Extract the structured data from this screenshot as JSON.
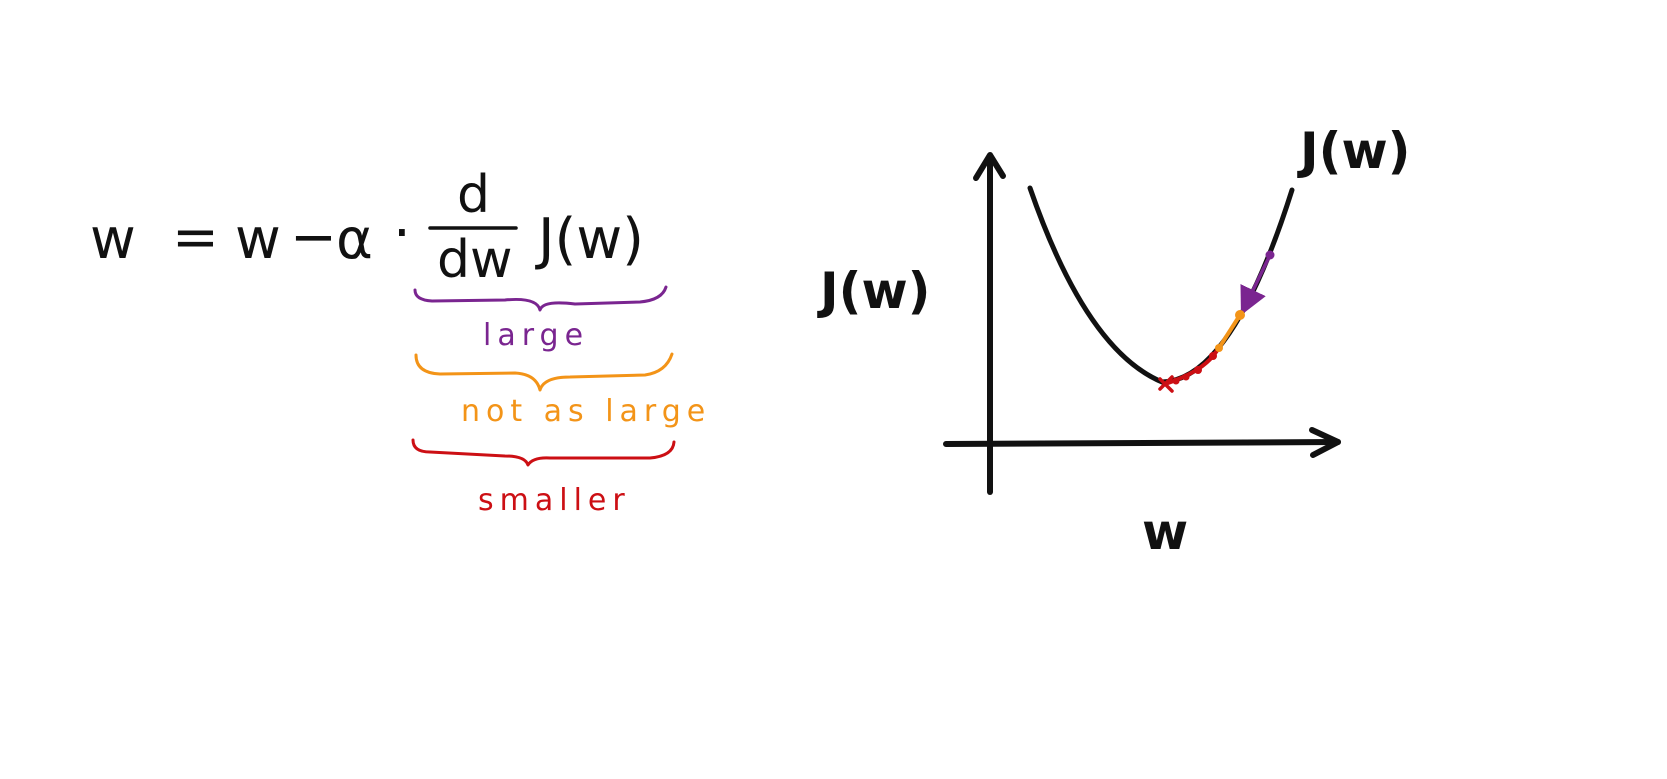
{
  "equation": {
    "lhs": "w",
    "equals": "=",
    "w_term": "w",
    "minus": "−",
    "alpha": "α",
    "dot": "·",
    "numerator": "d",
    "denominator": "dw",
    "function": "J(w)"
  },
  "annotations": [
    {
      "label": "large",
      "color": "#7a2590"
    },
    {
      "label": "not as large",
      "color": "#f39418"
    },
    {
      "label": "smaller",
      "color": "#cc0f14"
    }
  ],
  "graph": {
    "y_axis_label": "J(w)",
    "x_axis_label": "w",
    "curve_label": "J(w)",
    "curve_color": "#111111",
    "step_colors": [
      "#7a2590",
      "#f39418",
      "#cc0f14"
    ]
  }
}
